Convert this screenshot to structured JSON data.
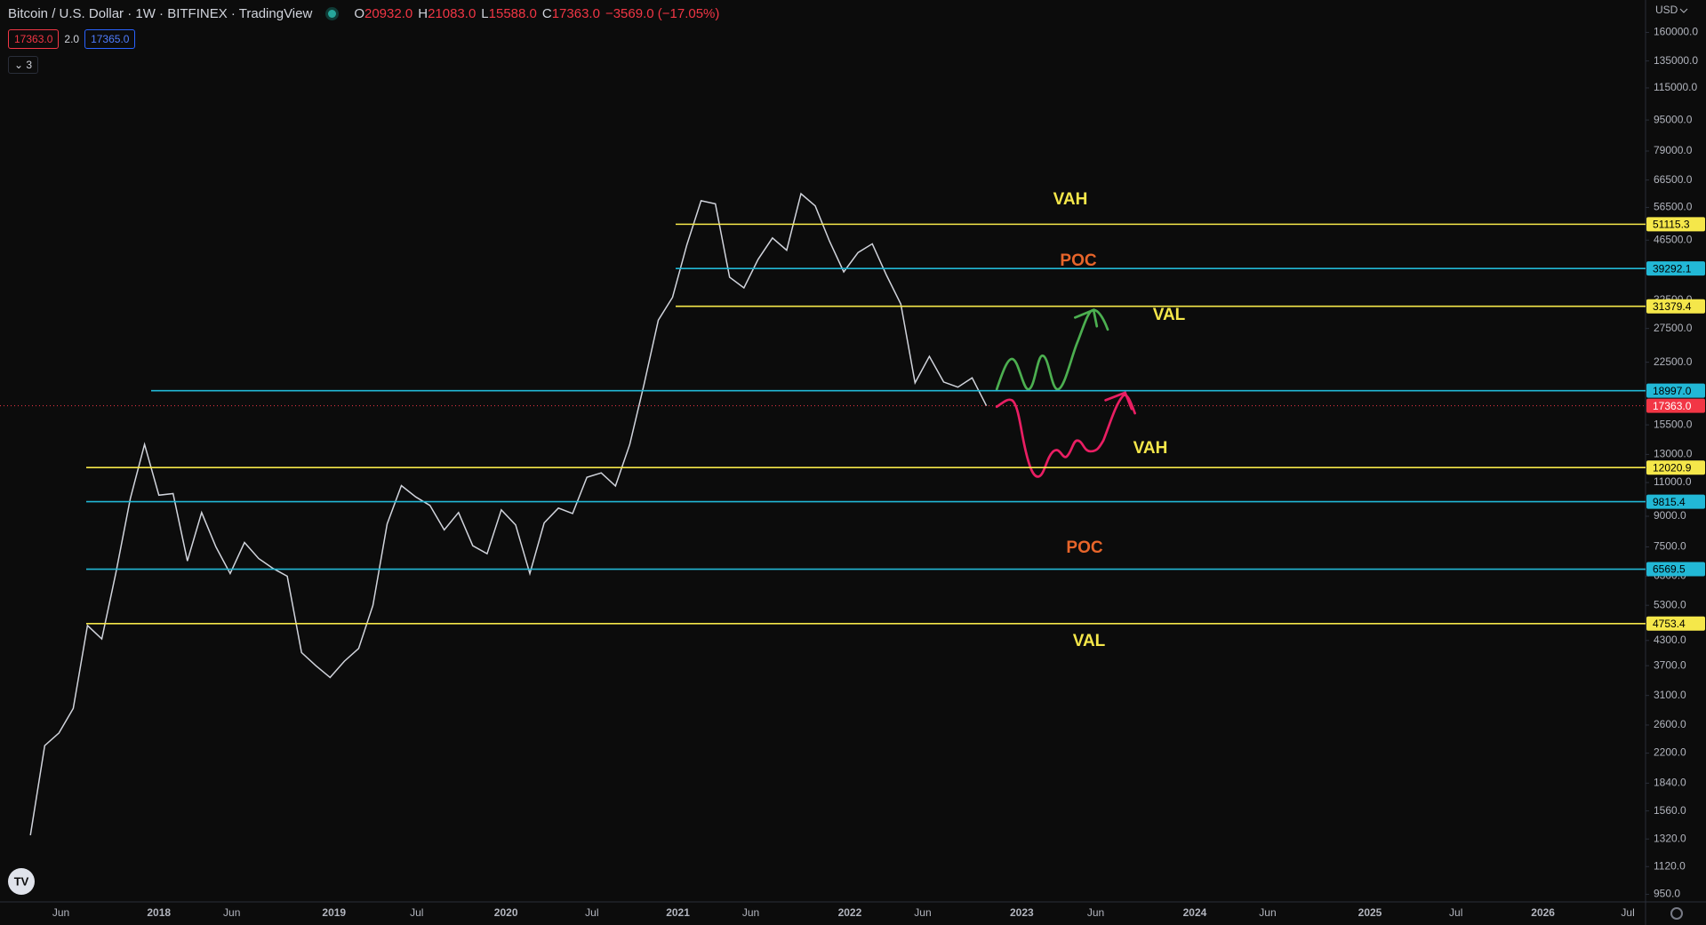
{
  "header": {
    "title": "Bitcoin / U.S. Dollar · 1W · BITFINEX · TradingView",
    "ohlc": [
      {
        "label": "O",
        "value": "20932.0"
      },
      {
        "label": "H",
        "value": "21083.0"
      },
      {
        "label": "L",
        "value": "15588.0"
      },
      {
        "label": "C",
        "value": "17363.0"
      }
    ],
    "change": "−3569.0 (−17.05%)"
  },
  "badges": {
    "sell": "17363.0",
    "spread": "2.0",
    "buy": "17365.0",
    "indicators": "3"
  },
  "price_axis": {
    "currency": "USD",
    "scale": "log",
    "ylim": [
      908,
      194000
    ],
    "ticks": [
      {
        "value": 160000,
        "label": "160000.0"
      },
      {
        "value": 135000,
        "label": "135000.0"
      },
      {
        "value": 115000,
        "label": "115000.0"
      },
      {
        "value": 95000,
        "label": "95000.0"
      },
      {
        "value": 79000,
        "label": "79000.0"
      },
      {
        "value": 66500,
        "label": "66500.0"
      },
      {
        "value": 56500,
        "label": "56500.0"
      },
      {
        "value": 46500,
        "label": "46500.0"
      },
      {
        "value": 32500,
        "label": "32500.0"
      },
      {
        "value": 27500,
        "label": "27500.0"
      },
      {
        "value": 22500,
        "label": "22500.0"
      },
      {
        "value": 15500,
        "label": "15500.0"
      },
      {
        "value": 13000,
        "label": "13000.0"
      },
      {
        "value": 11000,
        "label": "11000.0"
      },
      {
        "value": 9000,
        "label": "9000.0"
      },
      {
        "value": 7500,
        "label": "7500.0"
      },
      {
        "value": 6300,
        "label": "6300.0"
      },
      {
        "value": 5300,
        "label": "5300.0"
      },
      {
        "value": 4300,
        "label": "4300.0"
      },
      {
        "value": 3700,
        "label": "3700.0"
      },
      {
        "value": 3100,
        "label": "3100.0"
      },
      {
        "value": 2600,
        "label": "2600.0"
      },
      {
        "value": 2200,
        "label": "2200.0"
      },
      {
        "value": 1840,
        "label": "1840.0"
      },
      {
        "value": 1560,
        "label": "1560.0"
      },
      {
        "value": 1320,
        "label": "1320.0"
      },
      {
        "value": 1120,
        "label": "1120.0"
      },
      {
        "value": 950,
        "label": "950.0"
      }
    ]
  },
  "levels": [
    {
      "value": 51115.3,
      "label": "51115.3",
      "color": "#f5e74a"
    },
    {
      "value": 39292.1,
      "label": "39292.1",
      "color": "#22b8d6"
    },
    {
      "value": 31379.4,
      "label": "31379.4",
      "color": "#f5e74a"
    },
    {
      "value": 18997,
      "label": "18997.0",
      "color": "#22b8d6"
    },
    {
      "value": 12020.9,
      "label": "12020.9",
      "color": "#f5e74a"
    },
    {
      "value": 9815.4,
      "label": "9815.4",
      "color": "#22b8d6"
    },
    {
      "value": 6569.5,
      "label": "6569.5",
      "color": "#22b8d6"
    },
    {
      "value": 4753.4,
      "label": "4753.4",
      "color": "#f5e74a"
    }
  ],
  "current_price": {
    "value": 17363,
    "label": "17363.0",
    "color": "#f23645"
  },
  "annotations": [
    {
      "text": "VAH",
      "color": "#f5e74a"
    },
    {
      "text": "POC",
      "color": "#e8652a"
    },
    {
      "text": "VAL",
      "color": "#f5e74a"
    },
    {
      "text": "VAH",
      "color": "#f5e74a"
    },
    {
      "text": "POC",
      "color": "#e8652a"
    },
    {
      "text": "VAL",
      "color": "#f5e74a"
    }
  ],
  "time_axis": {
    "labels": [
      "Jun",
      "2018",
      "Jun",
      "2019",
      "Jul",
      "2020",
      "Jul",
      "2021",
      "Jun",
      "2022",
      "Jun",
      "2023",
      "Jun",
      "2024",
      "Jun",
      "2025",
      "Jul",
      "2026",
      "Jul"
    ]
  },
  "price_history": [
    1350,
    2300,
    2480,
    2870,
    4700,
    4340,
    6450,
    10000,
    13800,
    10200,
    10300,
    6900,
    9200,
    7500,
    6400,
    7700,
    7000,
    6600,
    6300,
    4000,
    3700,
    3450,
    3800,
    4100,
    5300,
    8600,
    10800,
    10100,
    9600,
    8300,
    9200,
    7550,
    7200,
    9350,
    8550,
    6400,
    8650,
    9450,
    9150,
    11350,
    11650,
    10780,
    13800,
    19700,
    28900,
    33100,
    45200,
    58800,
    57700,
    37300,
    35000,
    41500,
    47100,
    43800,
    61300,
    57000,
    46200,
    38500,
    43200,
    45500,
    37700,
    31800,
    19900,
    23300,
    20000,
    19400,
    20500,
    17363
  ]
}
